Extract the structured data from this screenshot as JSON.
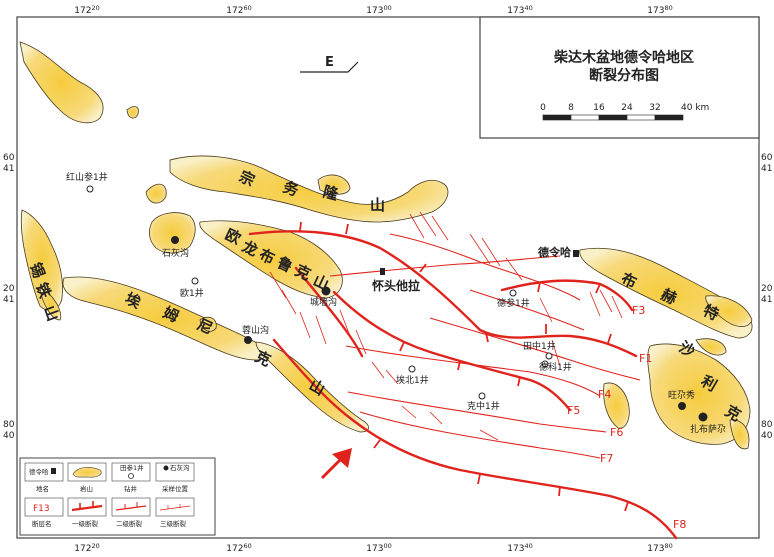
{
  "map": {
    "title_line1": "柴达木盆地德令哈地区",
    "title_line2": "断裂分布图",
    "north_arrow_label": "E",
    "scale_labels": [
      "0",
      "8",
      "16",
      "24",
      "32",
      "40 km"
    ],
    "top_ticks": [
      "172",
      "20",
      "172",
      "60",
      "173",
      "00",
      "173",
      "40",
      "173",
      "80"
    ],
    "bottom_ticks": [
      "172",
      "20",
      "172",
      "60",
      "173",
      "00",
      "173",
      "40",
      "173",
      "80"
    ],
    "left_ticks": [
      [
        "60",
        "41"
      ],
      [
        "20",
        "41"
      ],
      [
        "80",
        "40"
      ]
    ],
    "right_ticks": [
      [
        "60",
        "41"
      ],
      [
        "20",
        "41"
      ],
      [
        "80",
        "40"
      ]
    ],
    "mountains": {
      "zongwulong": [
        "宗",
        "务",
        "隆",
        "山"
      ],
      "oulongbuluke": [
        "欧",
        "龙",
        "布",
        "鲁",
        "克",
        "山"
      ],
      "aimunike": [
        "埃",
        "姆",
        "尼",
        "克",
        "山"
      ],
      "xitieshan": [
        "锡",
        "铁",
        "山"
      ],
      "buhete": [
        "布",
        "赫",
        "特"
      ],
      "shalike": [
        "沙",
        "利",
        "克"
      ]
    },
    "places": {
      "hongshancan": "红山参1井",
      "shihuigou": "石灰沟",
      "ou1": "欧1井",
      "rongshangou": "蓉山沟",
      "chengbeigou": "城墙沟",
      "huaitou": "怀头他拉",
      "delingha": "德令哈",
      "decan": "德参1井",
      "tianzhong": "田中1井",
      "dengke": "德科1井",
      "aibei": "埃北1井",
      "kezhong": "克中1井",
      "wangcheng": "旺尕秀",
      "zhabusaer": "扎布萨尕"
    },
    "faults": {
      "f1": "F1",
      "f3": "F3",
      "f4": "F4",
      "f5": "F5",
      "f6": "F6",
      "f7": "F7",
      "f8": "F8"
    },
    "legend": {
      "placename_sample": "德令哈",
      "placename_caption": "地名",
      "rock_caption": "岩山",
      "well_sample": "田参1井",
      "well_caption": "钻井",
      "sample_sample": "石灰沟",
      "sample_caption": "采样位置",
      "fault_sample": "F13",
      "fault_caption": "断层名",
      "first_caption": "一级断裂",
      "second_caption": "二级断裂",
      "third_caption": "三级断裂"
    },
    "colors": {
      "rock_fill": "#f3d37a",
      "rock_core": "#f6cc3d",
      "fault_red": "#e0241d",
      "frame": "#444444"
    }
  }
}
